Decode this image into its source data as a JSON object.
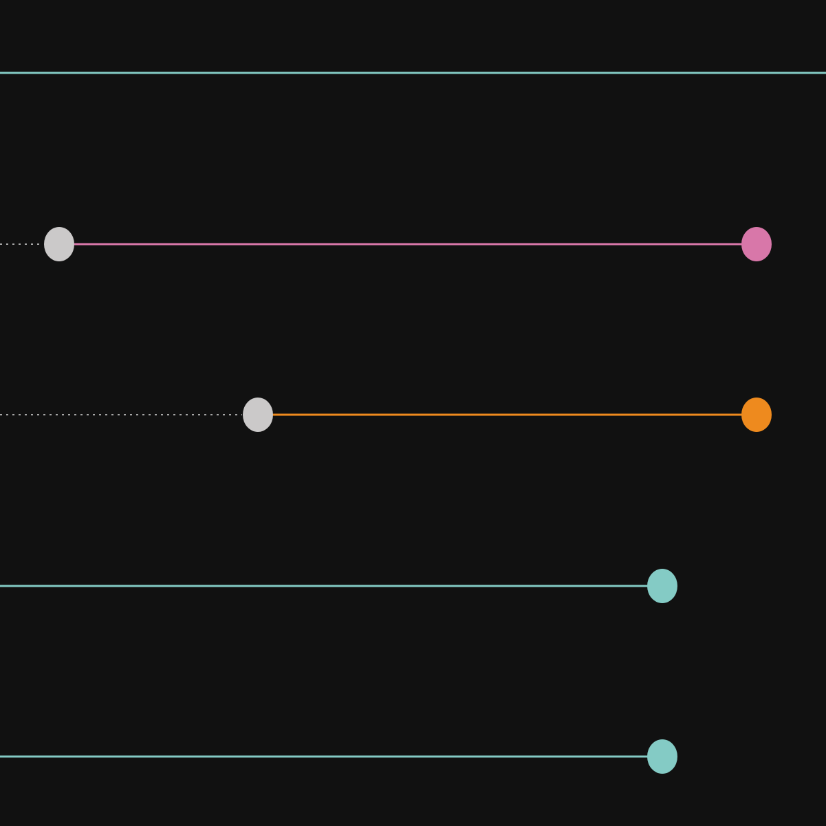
{
  "colors": {
    "background": "#111111",
    "teal": "#84CBC5",
    "pink": "#D877A9",
    "orange": "#EE8A1E",
    "gray": "#CBC9C9",
    "dotted": "#D8D8D8"
  },
  "lanes": [
    {
      "id": "lane-1",
      "color": "teal",
      "commits": []
    },
    {
      "id": "lane-2",
      "color": "pink",
      "commits": [
        "gray",
        "pink"
      ],
      "dotted_lead_in": true
    },
    {
      "id": "lane-3",
      "color": "orange",
      "commits": [
        "gray",
        "orange"
      ],
      "dotted_lead_in": true
    },
    {
      "id": "lane-4",
      "color": "teal",
      "commits": [
        "teal"
      ]
    },
    {
      "id": "lane-5",
      "color": "teal",
      "commits": [
        "teal"
      ]
    }
  ]
}
